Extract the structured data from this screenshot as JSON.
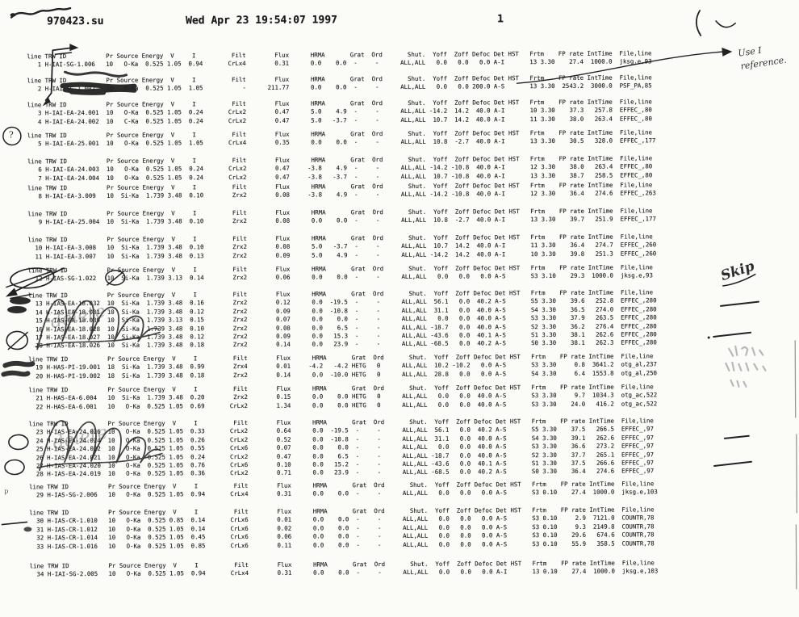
{
  "header": {
    "filename": "970423.su",
    "datetime": "Wed Apr 23 19:54:07 1997",
    "page": "1"
  },
  "table": {
    "columns": [
      "line",
      "TRW ID",
      "Pr",
      "Source",
      "Energy",
      "V",
      "I",
      "Filt",
      "Flux",
      "HRMA",
      "Grat",
      "Ord",
      "Shut.",
      "Yoff",
      "Zoff",
      "Defoc",
      "Det",
      "HST",
      "Frtm",
      "FP rate",
      "IntTime",
      "File,line"
    ],
    "blocks": [
      {
        "rows": [
          [
            "1",
            "H-IAI-SG-1.006",
            "10",
            "O-Ka",
            "0.525",
            "1.05",
            "0.94",
            "CrLx4",
            "0.31",
            "0.0",
            "0.0",
            "-",
            "-",
            "ALL,ALL",
            "0.0",
            "0.0",
            "0.0",
            "A-I",
            "",
            "13 3.30",
            "27.4",
            "1000.0",
            "jksg.e,93"
          ]
        ]
      },
      {
        "rows": [
          [
            "2",
            "H-IAI-SG-1.002",
            "10",
            "O-Ka",
            "0.525",
            "1.05",
            "1.05",
            "-",
            "211.77",
            "0.0",
            "0.0",
            "-",
            "-",
            "ALL,ALL",
            "0.0",
            "0.0",
            "200.0",
            "A-S",
            "",
            "13 3.30",
            "2543.2",
            "3000.0",
            "PSF_PA,85"
          ]
        ]
      },
      {
        "rows": [
          [
            "3",
            "H-IAI-EA-24.001",
            "10",
            "O-Ka",
            "0.525",
            "1.05",
            "0.24",
            "CrLx2",
            "0.47",
            "5.0",
            "4.9",
            "-",
            "-",
            "ALL,ALL",
            "-14.2",
            "14.2",
            "40.0",
            "A-I",
            "",
            "10 3.30",
            "37.3",
            "257.8",
            "EFFEC_,80"
          ],
          [
            "4",
            "H-IAI-EA-24.002",
            "10",
            "C-Ka",
            "0.525",
            "1.05",
            "0.24",
            "CrLx2",
            "0.47",
            "5.0",
            "-3.7",
            "-",
            "-",
            "ALL,ALL",
            "10.7",
            "14.2",
            "40.0",
            "A-I",
            "",
            "11 3.30",
            "38.0",
            "263.4",
            "EFFEC_,80"
          ]
        ]
      },
      {
        "rows": [
          [
            "5",
            "H-IAI-EA-25.001",
            "10",
            "O-Ka",
            "0.525",
            "1.05",
            "1.05",
            "CrLx4",
            "0.35",
            "0.0",
            "0.0",
            "-",
            "-",
            "ALL,ALL",
            "10.8",
            "-2.7",
            "40.0",
            "A-I",
            "",
            "13 3.30",
            "30.5",
            "328.0",
            "EFFEC_,177"
          ]
        ]
      },
      {
        "rows": [
          [
            "6",
            "H-IAI-EA-24.003",
            "10",
            "O-Ka",
            "0.525",
            "1.05",
            "0.24",
            "CrLx2",
            "0.47",
            "-3.8",
            "4.9",
            "-",
            "-",
            "ALL,ALL",
            "-14.2",
            "-10.8",
            "40.0",
            "A-I",
            "",
            "12 3.30",
            "38.0",
            "263.4",
            "EFFEC_,80"
          ],
          [
            "7",
            "H-IAI-EA-24.004",
            "10",
            "O-Ka",
            "0.525",
            "1.05",
            "0.24",
            "CrLx2",
            "0.47",
            "-3.8",
            "-3.7",
            "-",
            "-",
            "ALL,ALL",
            "10.7",
            "-10.8",
            "40.0",
            "A-I",
            "",
            "13 3.30",
            "38.7",
            "258.5",
            "EFFEC_,80"
          ]
        ]
      },
      {
        "rows": [
          [
            "8",
            "H-IAI-EA-3.009",
            "10",
            "Si-Ka",
            "1.739",
            "3.48",
            "0.10",
            "Zrx2",
            "0.08",
            "-3.8",
            "4.9",
            "-",
            "-",
            "ALL,ALL",
            "-14.2",
            "-10.8",
            "40.0",
            "A-I",
            "",
            "12 3.30",
            "36.4",
            "274.6",
            "EFFEC_,263"
          ]
        ]
      },
      {
        "rows": [
          [
            "9",
            "H-IAI-EA-25.004",
            "10",
            "Si-Ka",
            "1.739",
            "3.48",
            "0.10",
            "Zrx2",
            "0.08",
            "0.0",
            "0.0",
            "-",
            "-",
            "ALL,ALL",
            "10.8",
            "-2.7",
            "40.0",
            "A-I",
            "",
            "13 3.30",
            "39.7",
            "251.9",
            "EFFEC_,177"
          ]
        ]
      },
      {
        "rows": [
          [
            "10",
            "H-IAI-EA-3.008",
            "10",
            "Si-Ka",
            "1.739",
            "3.48",
            "0.10",
            "Zrx2",
            "0.08",
            "5.0",
            "-3.7",
            "-",
            "-",
            "ALL,ALL",
            "10.7",
            "14.2",
            "40.0",
            "A-I",
            "",
            "11 3.30",
            "36.4",
            "274.7",
            "EFFEC_,260"
          ],
          [
            "11",
            "H-IAI-EA-3.007",
            "10",
            "Si-Ka",
            "1.739",
            "3.48",
            "0.13",
            "Zrx2",
            "0.09",
            "5.0",
            "4.9",
            "-",
            "-",
            "ALL,ALL",
            "-14.2",
            "14.2",
            "40.0",
            "A-I",
            "",
            "10 3.30",
            "39.8",
            "251.3",
            "EFFEC_,260"
          ]
        ]
      },
      {
        "rows": [
          [
            "12",
            "H-IAS-SG-1.022",
            "10",
            "Si-Ka",
            "1.739",
            "3.13",
            "0.14",
            "Zrx2",
            "0.06",
            "0.0",
            "0.0",
            "-",
            "-",
            "ALL,ALL",
            "0.0",
            "0.0",
            "0.0",
            "A-S",
            "",
            "S3 3.10",
            "29.3",
            "1000.0",
            "jksg.e,93"
          ]
        ]
      },
      {
        "rows": [
          [
            "13",
            "H-IAS-EA-18.032",
            "10",
            "Si-Ka",
            "1.739",
            "3.48",
            "0.16",
            "Zrx2",
            "0.12",
            "0.0",
            "-19.5",
            "-",
            "-",
            "ALL,ALL",
            "56.1",
            "0.0",
            "40.2",
            "A-S",
            "",
            "S5 3.30",
            "39.6",
            "252.8",
            "EFFEC_,280"
          ],
          [
            "14",
            "H-IAS-EA-18.031",
            "10",
            "Si-Ka",
            "1.739",
            "3.48",
            "0.12",
            "Zrx2",
            "0.09",
            "0.0",
            "-10.8",
            "-",
            "-",
            "ALL,ALL",
            "31.1",
            "0.0",
            "40.0",
            "A-S",
            "",
            "S4 3.30",
            "36.5",
            "274.0",
            "EFFEC_,280"
          ],
          [
            "15",
            "H-IAS-EA-18.039",
            "10",
            "Si-Ka",
            "1.739",
            "3.13",
            "0.15",
            "Zrx2",
            "0.07",
            "0.0",
            "0.0",
            "-",
            "-",
            "ALL,ALL",
            "0.0",
            "0.0",
            "40.0",
            "A-S",
            "",
            "S3 3.30",
            "37.9",
            "263.5",
            "EFFEC_,280"
          ],
          [
            "16",
            "H-IAS-EA-18.028",
            "10",
            "Si-Ka",
            "1.739",
            "3.48",
            "0.10",
            "Zrx2",
            "0.08",
            "0.0",
            "6.5",
            "-",
            "-",
            "ALL,ALL",
            "-18.7",
            "0.0",
            "40.0",
            "A-S",
            "",
            "S2 3.30",
            "36.2",
            "276.4",
            "EFFEC_,280"
          ],
          [
            "17",
            "H-IAS-EA-18.027",
            "10",
            "Si-Ka",
            "1.739",
            "3.48",
            "0.12",
            "Zrx2",
            "0.09",
            "0.0",
            "15.3",
            "-",
            "-",
            "ALL,ALL",
            "-43.6",
            "0.0",
            "40.1",
            "A-S",
            "",
            "S1 3.30",
            "38.1",
            "262.6",
            "EFFEC_,280"
          ],
          [
            "18",
            "H-IAS-EA-18.026",
            "10",
            "Si-Ka",
            "1.739",
            "3.48",
            "0.18",
            "Zrx2",
            "0.14",
            "0.0",
            "23.9",
            "-",
            "-",
            "ALL,ALL",
            "-68.5",
            "0.0",
            "40.2",
            "A-S",
            "",
            "S0 3.30",
            "38.1",
            "262.3",
            "EFFEC_,280"
          ]
        ]
      },
      {
        "rows": [
          [
            "19",
            "H-HAS-PI-19.001",
            "18",
            "Si-Ka",
            "1.739",
            "3.48",
            "0.99",
            "Zrx4",
            "0.01",
            "-4.2",
            "-4.2",
            "HETG",
            "0",
            "ALL,ALL",
            "10.2",
            "-10.2",
            "0.0",
            "A-S",
            "",
            "S3 3.30",
            "0.8",
            "3641.2",
            "otg_al,237"
          ],
          [
            "20",
            "H-HAS-PI-19.002",
            "18",
            "Si-Ka",
            "1.739",
            "3.48",
            "0.18",
            "Zrx2",
            "0.14",
            "0.0",
            "-10.0",
            "HETG",
            "0",
            "ALL,ALL",
            "28.8",
            "0.0",
            "0.0",
            "A-S",
            "",
            "S4 3.30",
            "6.4",
            "1553.8",
            "otg_al,250"
          ]
        ]
      },
      {
        "rows": [
          [
            "21",
            "H-HAS-EA-6.004",
            "10",
            "Si-Ka",
            "1.739",
            "3.48",
            "0.20",
            "Zrx2",
            "0.15",
            "0.0",
            "0.0",
            "HETG",
            "0",
            "ALL,ALL",
            "0.0",
            "0.0",
            "40.0",
            "A-S",
            "",
            "S3 3.30",
            "9.7",
            "1034.3",
            "otg_ac,522"
          ],
          [
            "22",
            "H-HAS-EA-6.001",
            "10",
            "O-Ka",
            "0.525",
            "1.05",
            "0.69",
            "CrLx2",
            "1.34",
            "0.0",
            "0.0",
            "HETG",
            "0",
            "ALL,ALL",
            "0.0",
            "0.0",
            "40.0",
            "A-S",
            "",
            "S3 3.30",
            "24.0",
            "416.2",
            "otg_ac,522"
          ]
        ]
      },
      {
        "rows": [
          [
            "23",
            "H-IAS-EA-24.026",
            "10",
            "O-Ka",
            "0.525",
            "1.05",
            "0.33",
            "CrLx2",
            "0.64",
            "0.0",
            "-19.5",
            "-",
            "-",
            "ALL,ALL",
            "56.1",
            "0.0",
            "40.2",
            "A-S",
            "",
            "S5 3.30",
            "37.5",
            "266.5",
            "EFFEC_,97"
          ],
          [
            "24",
            "H-IAS-EA-24.024",
            "10",
            "O-Ka",
            "0.525",
            "1.05",
            "0.26",
            "CrLx2",
            "0.52",
            "0.0",
            "-10.8",
            "-",
            "-",
            "ALL,ALL",
            "31.1",
            "0.0",
            "40.0",
            "A-S",
            "",
            "S4 3.30",
            "39.1",
            "262.6",
            "EFFEC_,97"
          ],
          [
            "25",
            "H-IAS-EA-24.022",
            "10",
            "O-Ka",
            "0.525",
            "1.05",
            "0.55",
            "CrLx6",
            "0.07",
            "0.0",
            "0.0",
            "-",
            "-",
            "ALL,ALL",
            "0.0",
            "0.0",
            "40.0",
            "A-S",
            "",
            "S3 3.30",
            "36.6",
            "273.2",
            "EFFEC_,97"
          ],
          [
            "26",
            "H-IAS-EA-24.021",
            "10",
            "O-Ka",
            "0.525",
            "1.05",
            "0.24",
            "CrLx2",
            "0.47",
            "0.0",
            "6.5",
            "-",
            "-",
            "ALL,ALL",
            "-18.7",
            "0.0",
            "40.0",
            "A-S",
            "",
            "S2 3.30",
            "37.7",
            "265.1",
            "EFFEC_,97"
          ],
          [
            "27",
            "H-IAS-EA-24.020",
            "10",
            "O-Ka",
            "0.525",
            "1.05",
            "0.76",
            "CrLx6",
            "0.10",
            "0.0",
            "15.2",
            "-",
            "-",
            "ALL,ALL",
            "-43.6",
            "0.0",
            "40.1",
            "A-S",
            "",
            "S1 3.30",
            "37.5",
            "266.6",
            "EFFEC_,97"
          ],
          [
            "28",
            "H-IAS-EA-24.019",
            "10",
            "O-Ka",
            "0.525",
            "1.05",
            "0.36",
            "CrLx2",
            "0.71",
            "0.0",
            "23.9",
            "-",
            "-",
            "ALL,ALL",
            "-68.5",
            "0.0",
            "40.2",
            "A-S",
            "",
            "S0 3.30",
            "36.4",
            "274.6",
            "EFFEC_,97"
          ]
        ]
      },
      {
        "rows": [
          [
            "29",
            "H-IAS-SG-2.006",
            "10",
            "O-Ka",
            "0.525",
            "1.05",
            "0.94",
            "CrLx4",
            "0.31",
            "0.0",
            "0.0",
            "-",
            "-",
            "ALL,ALL",
            "0.0",
            "0.0",
            "0.0",
            "A-S",
            "",
            "S3 0.10",
            "27.4",
            "1000.0",
            "jksg.e,103"
          ]
        ]
      },
      {
        "rows": [
          [
            "30",
            "H-IAS-CR-1.010",
            "10",
            "O-Ka",
            "0.525",
            "0.85",
            "0.14",
            "CrLx6",
            "0.01",
            "0.0",
            "0.0",
            "-",
            "-",
            "ALL,ALL",
            "0.0",
            "0.0",
            "0.0",
            "A-S",
            "",
            "S3 0.10",
            "2.9",
            "7121.0",
            "COUNTR,78"
          ],
          [
            "31",
            "H-IAS-CR-1.012",
            "10",
            "O-Ka",
            "0.525",
            "1.05",
            "0.14",
            "CrLx6",
            "0.02",
            "0.0",
            "0.0",
            "-",
            "-",
            "ALL,ALL",
            "0.0",
            "0.0",
            "0.0",
            "A-S",
            "",
            "S3 0.10",
            "9.3",
            "2149.8",
            "COUNTR,78"
          ],
          [
            "32",
            "H-IAS-CR-1.014",
            "10",
            "O-Ka",
            "0.525",
            "1.05",
            "0.45",
            "CrLx6",
            "0.06",
            "0.0",
            "0.0",
            "-",
            "-",
            "ALL,ALL",
            "0.0",
            "0.0",
            "0.0",
            "A-S",
            "",
            "S3 0.10",
            "29.6",
            "674.6",
            "COUNTR,78"
          ],
          [
            "33",
            "H-IAS-CR-1.016",
            "10",
            "O-Ka",
            "0.525",
            "1.05",
            "0.85",
            "CrLx6",
            "0.11",
            "0.0",
            "0.0",
            "-",
            "-",
            "ALL,ALL",
            "0.0",
            "0.0",
            "0.0",
            "A-S",
            "",
            "S3 0.10",
            "55.9",
            "358.5",
            "COUNTR,78"
          ]
        ]
      },
      {
        "rows": [
          [
            "34",
            "H-IAI-SG-2.005",
            "10",
            "O-Ka",
            "0.525",
            "1.05",
            "0.94",
            "CrLx4",
            "0.31",
            "0.0",
            "0.0",
            "-",
            "-",
            "ALL,ALL",
            "0.0",
            "0.0",
            "0.0",
            "A-I",
            "",
            "13 0.10",
            "27.4",
            "1000.0",
            "jksg.e,103"
          ]
        ]
      }
    ]
  },
  "annotations": {
    "use_reference_line1": "Use I",
    "use_reference_line2": "reference.",
    "skip": "Skip",
    "delete_upper": "delete",
    "delete_lower": "delete",
    "question_mark": "?",
    "margin_mark_p": "p"
  }
}
